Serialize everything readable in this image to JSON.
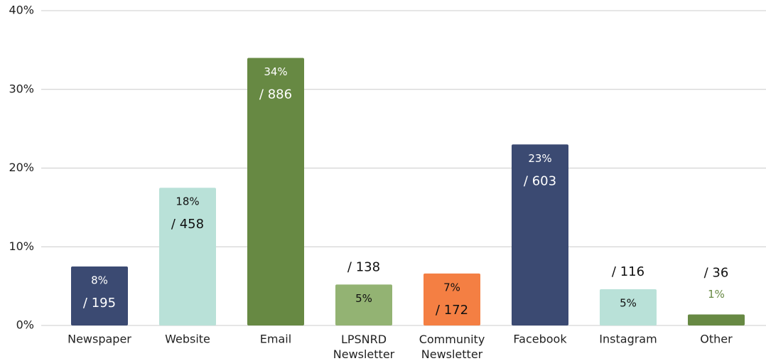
{
  "chart_data": {
    "type": "bar",
    "categories": [
      "Newspaper",
      "Website",
      "Email",
      "LPSNRD Newsletter",
      "Community Newsletter",
      "Facebook",
      "Instagram",
      "Other"
    ],
    "values": [
      7.5,
      17.5,
      34,
      5.2,
      6.6,
      23,
      4.6,
      1.4
    ],
    "value_labels": [
      "8%",
      "18%",
      "34%",
      "5%",
      "7%",
      "23%",
      "5%",
      "1%"
    ],
    "count_labels": [
      "/ 195",
      "/ 458",
      "/ 886",
      "/ 138",
      "/ 172",
      "/ 603",
      "/ 116",
      "/ 36"
    ],
    "colors": [
      "#3b4a72",
      "#b9e1d8",
      "#678943",
      "#93b373",
      "#f47f43",
      "#3b4a72",
      "#b9e1d8",
      "#678943"
    ],
    "ylim": [
      0,
      40
    ],
    "yticks": [
      {
        "value": 0,
        "label": "0%"
      },
      {
        "value": 10,
        "label": "10%"
      },
      {
        "value": 20,
        "label": "20%"
      },
      {
        "value": 30,
        "label": "30%"
      },
      {
        "value": 40,
        "label": "40%"
      }
    ],
    "grid": true
  }
}
